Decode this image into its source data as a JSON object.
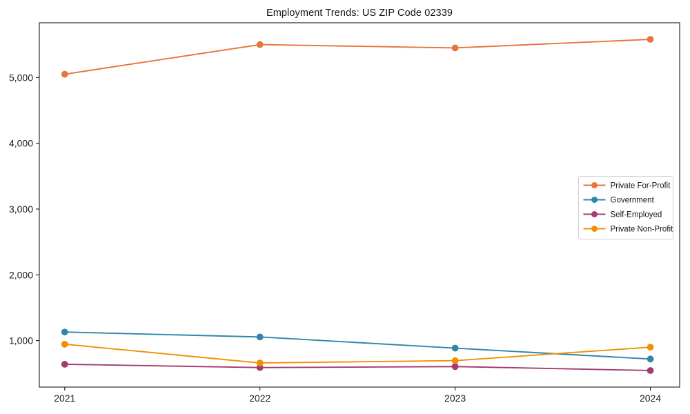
{
  "chart": {
    "title": "Employment Trends: US ZIP Code 02339"
  },
  "chart_data": {
    "type": "line",
    "title": "Employment Trends: US ZIP Code 02339",
    "x": [
      2021,
      2022,
      2023,
      2024
    ],
    "x_tick_labels": [
      "2021",
      "2022",
      "2023",
      "2024"
    ],
    "series": [
      {
        "name": "Private For-Profit",
        "color": "#e8743b",
        "values": [
          5050,
          5500,
          5450,
          5580
        ]
      },
      {
        "name": "Government",
        "color": "#2e86ab",
        "values": [
          1130,
          1055,
          885,
          720
        ]
      },
      {
        "name": "Self-Employed",
        "color": "#a23b72",
        "values": [
          640,
          590,
          605,
          545
        ]
      },
      {
        "name": "Private Non-Profit",
        "color": "#f18f01",
        "values": [
          945,
          660,
          695,
          900
        ]
      }
    ],
    "xlabel": "",
    "ylabel": "",
    "yticks": [
      1000,
      2000,
      3000,
      4000,
      5000
    ],
    "ytick_labels": [
      "1,000",
      "2,000",
      "3,000",
      "4,000",
      "5,000"
    ],
    "xlim": [
      2020.87,
      2024.15
    ],
    "ylim": [
      293,
      5832
    ],
    "grid": false,
    "legend_position": "center right",
    "marker": "circle",
    "axis_color": "#1a1a1a",
    "legend_border_color": "#cfcfcf",
    "background": "#ffffff"
  }
}
